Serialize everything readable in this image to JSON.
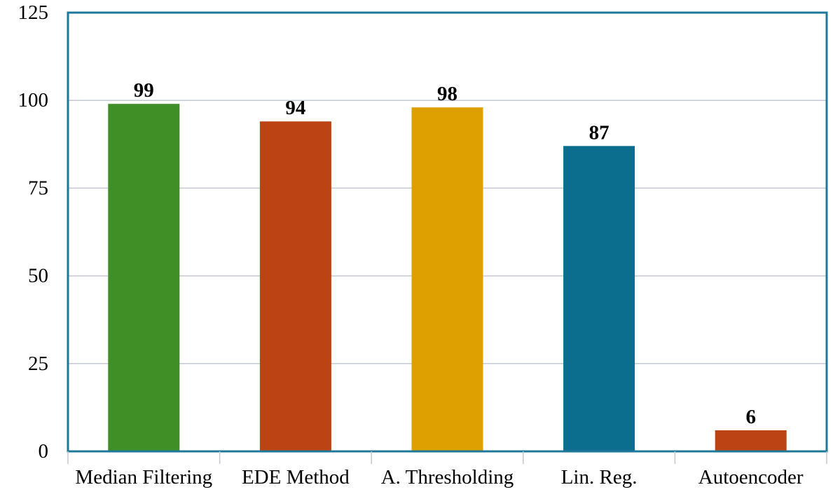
{
  "chart_data": {
    "type": "bar",
    "title": "",
    "xlabel": "",
    "ylabel": "",
    "categories": [
      "Median Filtering",
      "EDE Method",
      "A. Thresholding",
      "Lin. Reg.",
      "Autoencoder"
    ],
    "values": [
      99,
      94,
      98,
      87,
      6
    ],
    "value_labels": [
      "99",
      "94",
      "98",
      "87",
      "6"
    ],
    "colors": [
      "#3e8f26",
      "#bc4414",
      "#dea000",
      "#0c6e8e",
      "#bc4414"
    ],
    "ylim": [
      0,
      125
    ],
    "yticks": [
      0,
      25,
      50,
      75,
      100,
      125
    ],
    "ytick_labels": [
      "0",
      "25",
      "50",
      "75",
      "100",
      "125"
    ],
    "grid": true,
    "gridline_color": "#c3c8d0",
    "frame_color": "#1f7898",
    "legend": "none"
  }
}
